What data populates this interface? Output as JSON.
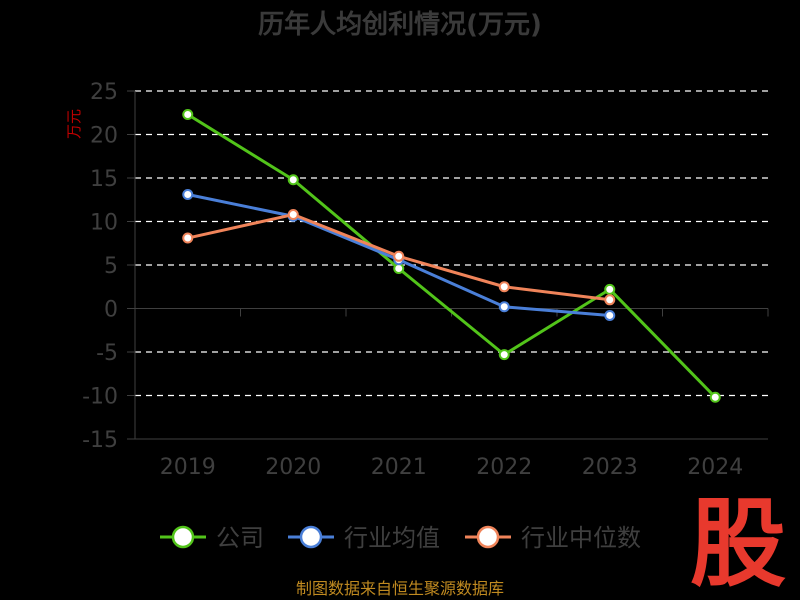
{
  "title": "历年人均创利情况(万元)",
  "source_text": "制图数据来自恒生聚源数据库",
  "watermark_text": "股",
  "colors": {
    "background": "#000000",
    "grid": "#ffffff",
    "axis": "#3f3f3f",
    "text": "#3f3f3f"
  },
  "chart_data": {
    "type": "line",
    "title": "历年人均创利情况(万元)",
    "xlabel": "",
    "ylabel": "万元",
    "x": [
      "2019",
      "2020",
      "2021",
      "2022",
      "2023",
      "2024"
    ],
    "ylim": [
      -15,
      25
    ],
    "yticks": [
      25,
      20,
      15,
      10,
      5,
      0,
      -5,
      -10,
      -15
    ],
    "grid": true,
    "legend_position": "bottom",
    "series": [
      {
        "name": "公司",
        "color": "#52c41a",
        "values": [
          22.3,
          14.8,
          4.6,
          -5.3,
          2.2,
          -10.2
        ]
      },
      {
        "name": "行业均值",
        "color": "#4a7fd8",
        "values": [
          13.1,
          10.6,
          5.6,
          0.2,
          -0.8,
          null
        ]
      },
      {
        "name": "行业中位数",
        "color": "#f0845a",
        "values": [
          8.1,
          10.8,
          6.0,
          2.5,
          1.0,
          null
        ]
      }
    ]
  }
}
